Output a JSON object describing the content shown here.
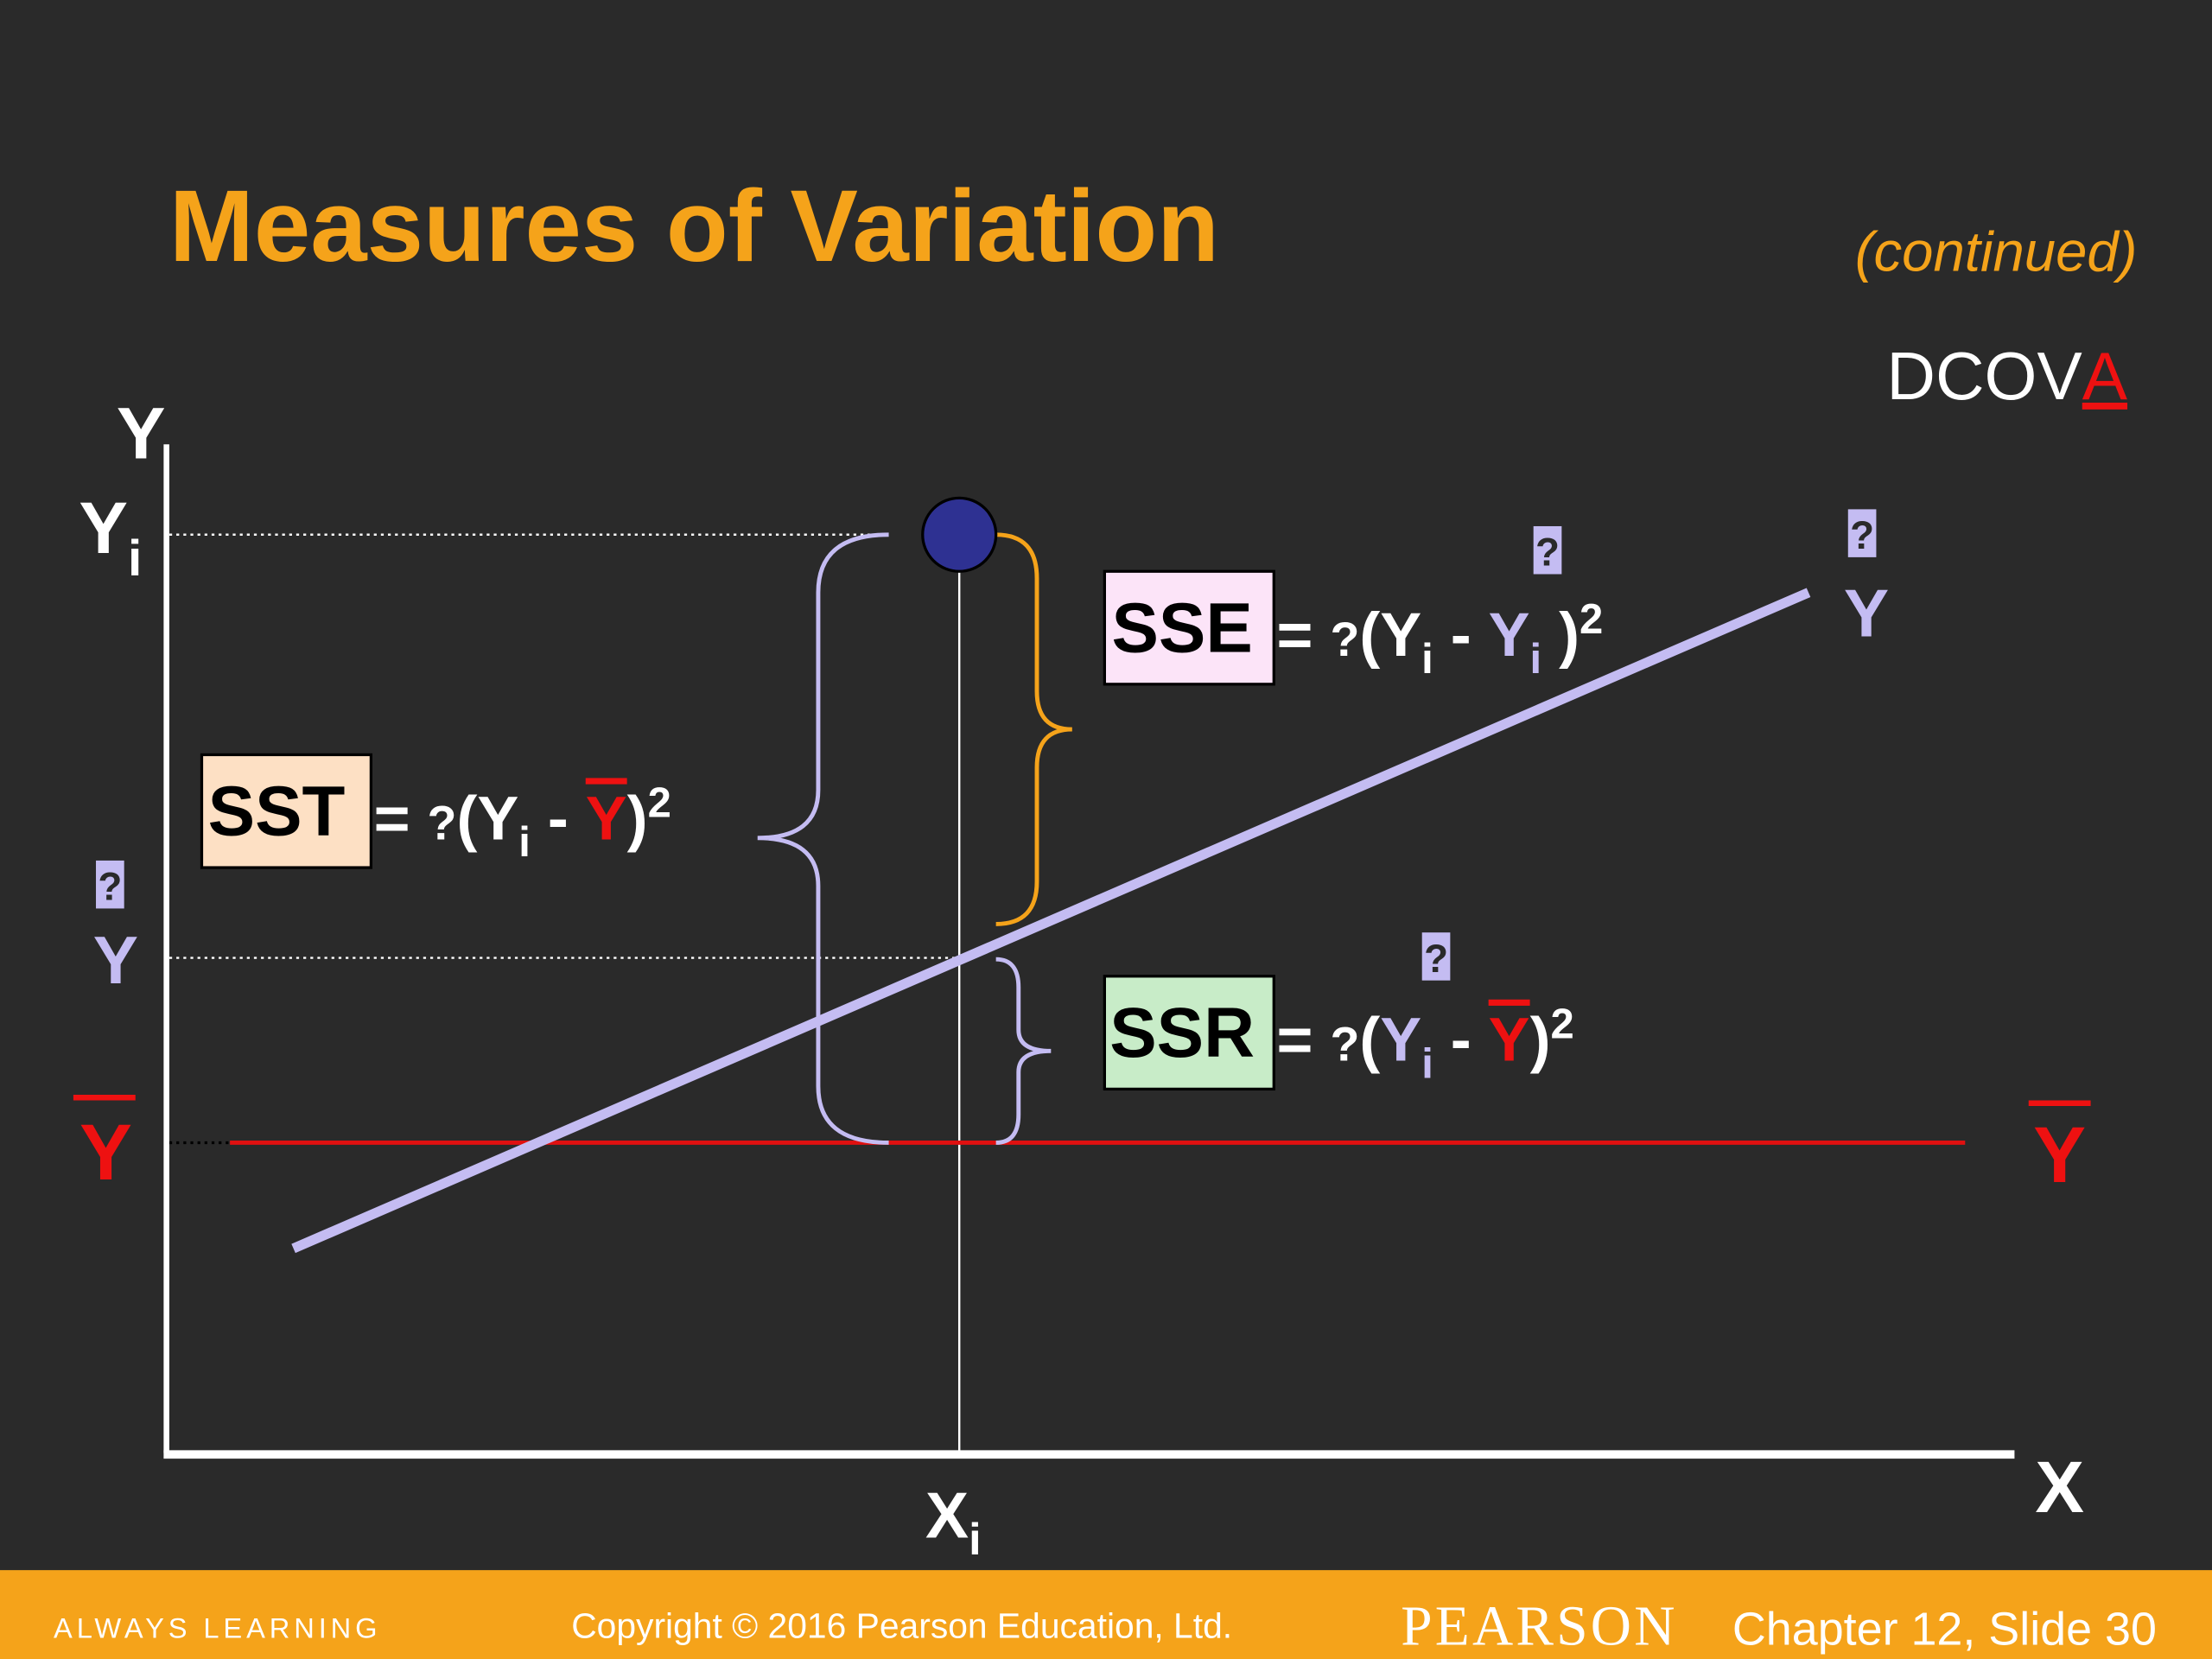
{
  "header": {
    "title": "Measures of Variation",
    "continued": "(continued)",
    "dcova": {
      "main": "DCOV",
      "highlight": "A"
    }
  },
  "axes": {
    "y": "Y",
    "x": "X",
    "yi": {
      "base": "Y",
      "sub": "i"
    },
    "xi": {
      "base": "X",
      "sub": "i"
    },
    "yhat_left": {
      "hat": "?",
      "base": "Y"
    },
    "ybar_left": "Y",
    "yhat_right": {
      "hat": "?",
      "base": "Y"
    },
    "ybar_right": "Y"
  },
  "formulas": {
    "sst": {
      "label": "SST",
      "eq": "= ",
      "sum": "?",
      "open": "(Y",
      "sub": "i",
      "minus": " - ",
      "ybar": "Y",
      "close": ")",
      "sup": "2"
    },
    "sse": {
      "label": "SSE",
      "eq": "= ",
      "sum": "?",
      "open": "(Y",
      "sub": "i",
      "minus": " - ",
      "hat": "?",
      "yhat": "Y",
      "hat_sub": "i",
      "close": " )",
      "sup": "2"
    },
    "ssr": {
      "label": "SSR",
      "eq": "= ",
      "sum": "?",
      "open": "(",
      "hat": "?",
      "yhat": "Y",
      "hat_sub": "i",
      "minus": " - ",
      "ybar": "Y",
      "close": ")",
      "sup": "2"
    }
  },
  "footer": {
    "tagline": "ALWAYS LEARNING",
    "copyright": "Copyright © 2016 Pearson Education, Ltd.",
    "brand": "PEARSON",
    "slide": "Chapter 12, Slide 30"
  }
}
